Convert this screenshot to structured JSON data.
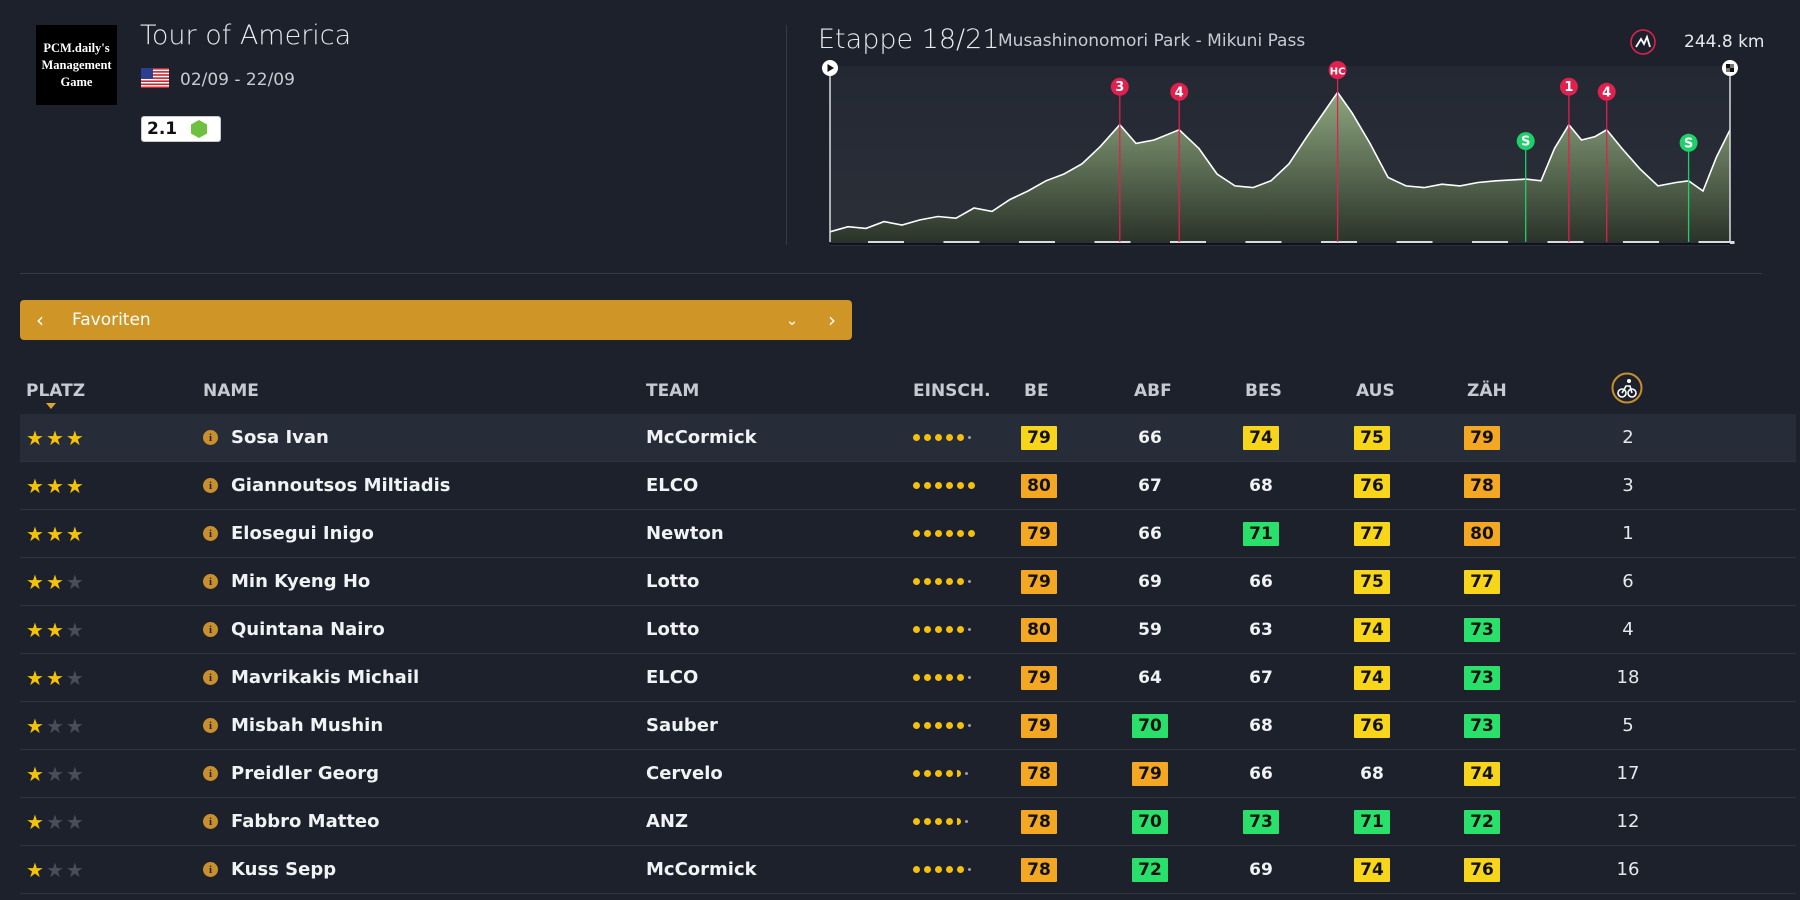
{
  "race": {
    "logo_text": "PCM.daily's\nManagement\nGame",
    "title": "Tour of America",
    "dates": "02/09 - 22/09",
    "category": "2.1"
  },
  "stage": {
    "title": "Etappe 18/21",
    "route": "Musashinonomori Park - Mikuni Pass",
    "distance": "244.8 km",
    "climbs": [
      {
        "label": "3",
        "type": "climb",
        "pos": 0.322
      },
      {
        "label": "4",
        "type": "climb",
        "pos": 0.388
      },
      {
        "label": "HC",
        "type": "climb",
        "pos": 0.564
      },
      {
        "label": "S",
        "type": "sprint",
        "pos": 0.773
      },
      {
        "label": "1",
        "type": "climb",
        "pos": 0.821
      },
      {
        "label": "4",
        "type": "climb",
        "pos": 0.863
      },
      {
        "label": "S",
        "type": "sprint",
        "pos": 0.954
      }
    ],
    "profile": [
      [
        0.0,
        0.06
      ],
      [
        0.02,
        0.09
      ],
      [
        0.04,
        0.08
      ],
      [
        0.06,
        0.12
      ],
      [
        0.08,
        0.1
      ],
      [
        0.1,
        0.13
      ],
      [
        0.12,
        0.15
      ],
      [
        0.14,
        0.14
      ],
      [
        0.16,
        0.2
      ],
      [
        0.18,
        0.18
      ],
      [
        0.2,
        0.25
      ],
      [
        0.22,
        0.3
      ],
      [
        0.24,
        0.36
      ],
      [
        0.26,
        0.4
      ],
      [
        0.28,
        0.46
      ],
      [
        0.3,
        0.56
      ],
      [
        0.322,
        0.69
      ],
      [
        0.34,
        0.58
      ],
      [
        0.36,
        0.6
      ],
      [
        0.388,
        0.66
      ],
      [
        0.41,
        0.55
      ],
      [
        0.43,
        0.4
      ],
      [
        0.45,
        0.33
      ],
      [
        0.47,
        0.32
      ],
      [
        0.49,
        0.36
      ],
      [
        0.51,
        0.46
      ],
      [
        0.53,
        0.62
      ],
      [
        0.564,
        0.88
      ],
      [
        0.58,
        0.76
      ],
      [
        0.6,
        0.58
      ],
      [
        0.62,
        0.38
      ],
      [
        0.64,
        0.33
      ],
      [
        0.66,
        0.32
      ],
      [
        0.68,
        0.34
      ],
      [
        0.7,
        0.33
      ],
      [
        0.72,
        0.35
      ],
      [
        0.74,
        0.36
      ],
      [
        0.773,
        0.37
      ],
      [
        0.79,
        0.36
      ],
      [
        0.805,
        0.55
      ],
      [
        0.821,
        0.69
      ],
      [
        0.835,
        0.6
      ],
      [
        0.85,
        0.62
      ],
      [
        0.863,
        0.66
      ],
      [
        0.88,
        0.55
      ],
      [
        0.9,
        0.43
      ],
      [
        0.92,
        0.33
      ],
      [
        0.94,
        0.35
      ],
      [
        0.954,
        0.36
      ],
      [
        0.97,
        0.3
      ],
      [
        0.985,
        0.5
      ],
      [
        1.0,
        0.66
      ]
    ]
  },
  "selector": {
    "label": "Favoriten",
    "prev_icon": "chevron-left-icon",
    "next_icon": "chevron-right-icon",
    "caret_icon": "chevron-down-icon"
  },
  "table": {
    "headers": {
      "platz": "PLATZ",
      "name": "NAME",
      "team": "TEAM",
      "einsch": "EINSCH.",
      "be": "BE",
      "abf": "ABF",
      "bes": "BES",
      "aus": "AUS",
      "zah": "ZÄH"
    },
    "rows": [
      {
        "stars": 3,
        "name": "Sosa Ivan",
        "team": "McCormick",
        "form": "full",
        "be": "79",
        "be_c": "yellow",
        "abf": "66",
        "abf_c": "",
        "bes": "74",
        "bes_c": "yellow",
        "aus": "75",
        "aus_c": "yellow",
        "zah": "79",
        "zah_c": "orange",
        "rank": "2"
      },
      {
        "stars": 3,
        "name": "Giannoutsos Miltiadis",
        "team": "ELCO",
        "form": "plus",
        "be": "80",
        "be_c": "orange",
        "abf": "67",
        "abf_c": "",
        "bes": "68",
        "bes_c": "",
        "aus": "76",
        "aus_c": "yellow",
        "zah": "78",
        "zah_c": "orange",
        "rank": "3"
      },
      {
        "stars": 3,
        "name": "Elosegui Inigo",
        "team": "Newton",
        "form": "plus",
        "be": "79",
        "be_c": "orange",
        "abf": "66",
        "abf_c": "",
        "bes": "71",
        "bes_c": "green",
        "aus": "77",
        "aus_c": "yellow",
        "zah": "80",
        "zah_c": "orange",
        "rank": "1"
      },
      {
        "stars": 2,
        "name": "Min Kyeng Ho",
        "team": "Lotto",
        "form": "full",
        "be": "79",
        "be_c": "orange",
        "abf": "69",
        "abf_c": "",
        "bes": "66",
        "bes_c": "",
        "aus": "75",
        "aus_c": "yellow",
        "zah": "77",
        "zah_c": "yellow",
        "rank": "6"
      },
      {
        "stars": 2,
        "name": "Quintana Nairo",
        "team": "Lotto",
        "form": "full",
        "be": "80",
        "be_c": "orange",
        "abf": "59",
        "abf_c": "",
        "bes": "63",
        "bes_c": "",
        "aus": "74",
        "aus_c": "yellow",
        "zah": "73",
        "zah_c": "green",
        "rank": "4"
      },
      {
        "stars": 2,
        "name": "Mavrikakis Michail",
        "team": "ELCO",
        "form": "full",
        "be": "79",
        "be_c": "orange",
        "abf": "64",
        "abf_c": "",
        "bes": "67",
        "bes_c": "",
        "aus": "74",
        "aus_c": "yellow",
        "zah": "73",
        "zah_c": "green",
        "rank": "18"
      },
      {
        "stars": 1,
        "name": "Misbah Mushin",
        "team": "Sauber",
        "form": "full",
        "be": "79",
        "be_c": "orange",
        "abf": "70",
        "abf_c": "green",
        "bes": "68",
        "bes_c": "",
        "aus": "76",
        "aus_c": "yellow",
        "zah": "73",
        "zah_c": "green",
        "rank": "5"
      },
      {
        "stars": 1,
        "name": "Preidler Georg",
        "team": "Cervelo",
        "form": "half",
        "be": "78",
        "be_c": "orange",
        "abf": "79",
        "abf_c": "orange",
        "bes": "66",
        "bes_c": "",
        "aus": "68",
        "aus_c": "",
        "zah": "74",
        "zah_c": "yellow",
        "rank": "17"
      },
      {
        "stars": 1,
        "name": "Fabbro Matteo",
        "team": "ANZ",
        "form": "half",
        "be": "78",
        "be_c": "orange",
        "abf": "70",
        "abf_c": "green",
        "bes": "73",
        "bes_c": "green",
        "aus": "71",
        "aus_c": "green",
        "zah": "72",
        "zah_c": "green",
        "rank": "12"
      },
      {
        "stars": 1,
        "name": "Kuss Sepp",
        "team": "McCormick",
        "form": "full",
        "be": "78",
        "be_c": "orange",
        "abf": "72",
        "abf_c": "green",
        "bes": "69",
        "bes_c": "",
        "aus": "74",
        "aus_c": "yellow",
        "zah": "76",
        "zah_c": "yellow",
        "rank": "16"
      }
    ]
  },
  "colors": {
    "background": "#1c212b",
    "selector": "#cf9527",
    "badge_yellow": "#f6d51a",
    "badge_orange": "#f3a722",
    "badge_green": "#29e06b",
    "climb_marker": "#e0204e",
    "sprint_marker": "#1fd06a"
  }
}
